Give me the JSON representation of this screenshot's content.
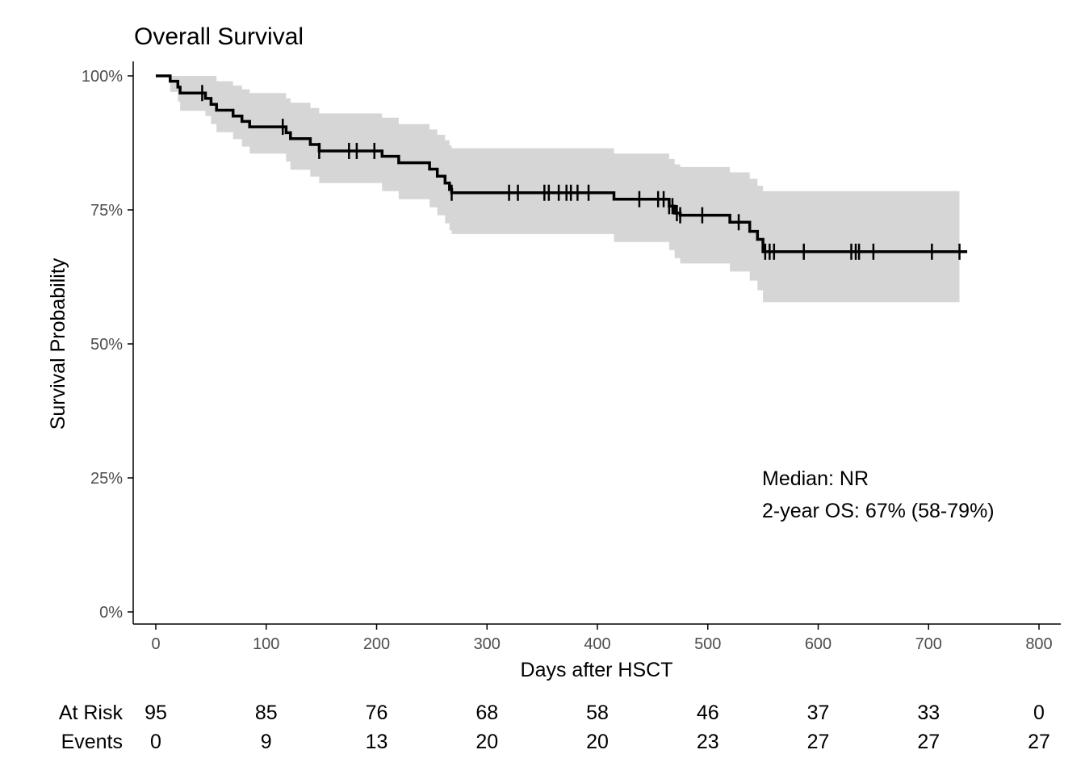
{
  "chart_data": {
    "type": "line",
    "title": "Overall Survival",
    "xlabel": "Days after HSCT",
    "ylabel": "Survival Probability",
    "xlim": [
      0,
      800
    ],
    "ylim": [
      0,
      1
    ],
    "x_ticks": [
      0,
      100,
      200,
      300,
      400,
      500,
      600,
      700,
      800
    ],
    "x_tick_labels": [
      "0",
      "100",
      "200",
      "300",
      "400",
      "500",
      "600",
      "700",
      "800"
    ],
    "y_ticks": [
      0,
      0.25,
      0.5,
      0.75,
      1.0
    ],
    "y_tick_labels": [
      "0%",
      "25%",
      "50%",
      "75%",
      "100%"
    ],
    "grid": false,
    "series": [
      {
        "color": "#000000",
        "steps": [
          [
            0,
            1.0
          ],
          [
            13,
            0.99
          ],
          [
            20,
            0.979
          ],
          [
            22,
            0.968
          ],
          [
            45,
            0.958
          ],
          [
            50,
            0.947
          ],
          [
            55,
            0.936
          ],
          [
            70,
            0.925
          ],
          [
            78,
            0.915
          ],
          [
            85,
            0.905
          ],
          [
            118,
            0.894
          ],
          [
            122,
            0.883
          ],
          [
            140,
            0.872
          ],
          [
            148,
            0.86
          ],
          [
            205,
            0.85
          ],
          [
            220,
            0.838
          ],
          [
            248,
            0.826
          ],
          [
            255,
            0.813
          ],
          [
            262,
            0.8
          ],
          [
            266,
            0.788
          ],
          [
            268,
            0.782
          ],
          [
            415,
            0.77
          ],
          [
            465,
            0.757
          ],
          [
            470,
            0.744
          ],
          [
            475,
            0.74
          ],
          [
            520,
            0.727
          ],
          [
            538,
            0.71
          ],
          [
            545,
            0.695
          ],
          [
            550,
            0.672
          ],
          [
            735,
            0.672
          ]
        ],
        "ci_steps": [
          [
            0,
            1.0,
            1.0
          ],
          [
            13,
            0.97,
            1.0
          ],
          [
            20,
            0.952,
            1.0
          ],
          [
            22,
            0.935,
            1.0
          ],
          [
            45,
            0.925,
            1.0
          ],
          [
            50,
            0.91,
            1.0
          ],
          [
            55,
            0.895,
            0.99
          ],
          [
            70,
            0.882,
            0.982
          ],
          [
            78,
            0.868,
            0.975
          ],
          [
            85,
            0.855,
            0.968
          ],
          [
            118,
            0.84,
            0.958
          ],
          [
            122,
            0.825,
            0.95
          ],
          [
            140,
            0.812,
            0.94
          ],
          [
            148,
            0.8,
            0.93
          ],
          [
            205,
            0.785,
            0.922
          ],
          [
            220,
            0.77,
            0.91
          ],
          [
            248,
            0.755,
            0.9
          ],
          [
            255,
            0.74,
            0.89
          ],
          [
            262,
            0.725,
            0.88
          ],
          [
            266,
            0.712,
            0.87
          ],
          [
            268,
            0.705,
            0.865
          ],
          [
            415,
            0.69,
            0.855
          ],
          [
            465,
            0.675,
            0.845
          ],
          [
            470,
            0.66,
            0.835
          ],
          [
            475,
            0.65,
            0.83
          ],
          [
            520,
            0.635,
            0.82
          ],
          [
            538,
            0.618,
            0.808
          ],
          [
            545,
            0.6,
            0.795
          ],
          [
            550,
            0.578,
            0.785
          ],
          [
            728,
            0.578,
            0.785
          ]
        ],
        "censor_x": [
          42,
          115,
          148,
          175,
          182,
          198,
          268,
          320,
          328,
          352,
          356,
          365,
          372,
          376,
          382,
          392,
          438,
          455,
          460,
          465,
          468,
          472,
          475,
          495,
          528,
          552,
          556,
          560,
          587,
          630,
          634,
          637,
          650,
          703,
          728
        ]
      }
    ],
    "annotations": [
      "Median: NR",
      "2-year OS: 67% (58-79%)"
    ],
    "risk_table": {
      "rows": [
        {
          "label": "At Risk",
          "values": [
            "95",
            "85",
            "76",
            "68",
            "58",
            "46",
            "37",
            "33",
            "0"
          ]
        },
        {
          "label": "Events",
          "values": [
            "0",
            "9",
            "13",
            "20",
            "20",
            "23",
            "27",
            "27",
            "27"
          ]
        }
      ]
    },
    "band_color": "#d6d6d6"
  }
}
